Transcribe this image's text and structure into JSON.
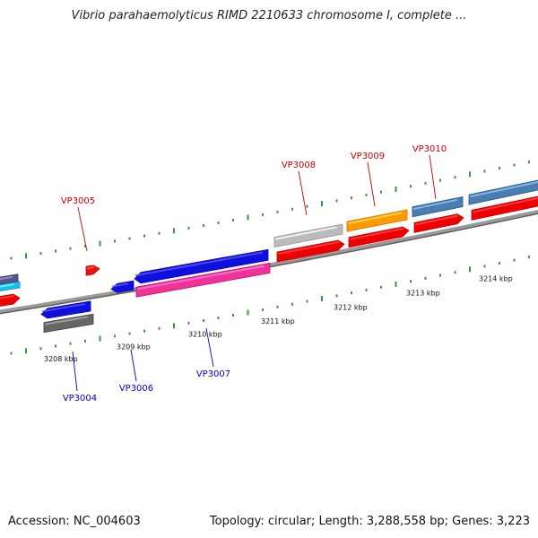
{
  "title": "Vibrio parahaemolyticus RIMD 2210633 chromosome I, complete ...",
  "footer": {
    "accession": "Accession: NC_004603",
    "summary": "Topology: circular; Length: 3,288,558 bp; Genes: 3,223"
  },
  "colors": {
    "background": "#ffffff",
    "backbone": "#808080",
    "tick_dots": "#3a9a3a",
    "label_top_strand": "#cc0000",
    "label_bottom_strand": "#0000cc"
  },
  "scale_labels": [
    "3208 kbp",
    "3209 kbp",
    "3210 kbp",
    "3211 kbp",
    "3212 kbp",
    "3213 kbp",
    "3214 kbp"
  ],
  "gene_labels": [
    {
      "name": "VP3004",
      "strand": "bottom"
    },
    {
      "name": "VP3005",
      "strand": "top"
    },
    {
      "name": "VP3006",
      "strand": "bottom"
    },
    {
      "name": "VP3007",
      "strand": "bottom"
    },
    {
      "name": "VP3008",
      "strand": "top"
    },
    {
      "name": "VP3009",
      "strand": "top"
    },
    {
      "name": "VP3010",
      "strand": "top"
    }
  ],
  "features": [
    {
      "id": "edge-purple",
      "color": "#55558a"
    },
    {
      "id": "edge-cyan",
      "color": "#22bbee"
    },
    {
      "id": "edge-red",
      "color": "#ee0000"
    },
    {
      "id": "VP3004-gene",
      "color": "#1010dd"
    },
    {
      "id": "VP3004-product",
      "color": "#666666"
    },
    {
      "id": "VP3005-gene",
      "color": "#ee1111"
    },
    {
      "id": "VP3006-gene",
      "color": "#1010dd"
    },
    {
      "id": "VP3007-gene",
      "color": "#1010dd"
    },
    {
      "id": "VP3007-product",
      "color": "#ee3399"
    },
    {
      "id": "VP3008-product",
      "color": "#bbbbbb"
    },
    {
      "id": "VP3008-gene",
      "color": "#ee0000"
    },
    {
      "id": "VP3009-product",
      "color": "#ff9900"
    },
    {
      "id": "VP3009-gene",
      "color": "#ee0000"
    },
    {
      "id": "VP3010-product",
      "color": "#4a7eb0"
    },
    {
      "id": "VP3010-gene",
      "color": "#ee0000"
    },
    {
      "id": "edge-right-product",
      "color": "#4a7eb0"
    },
    {
      "id": "edge-right-gene",
      "color": "#ee0000"
    }
  ]
}
